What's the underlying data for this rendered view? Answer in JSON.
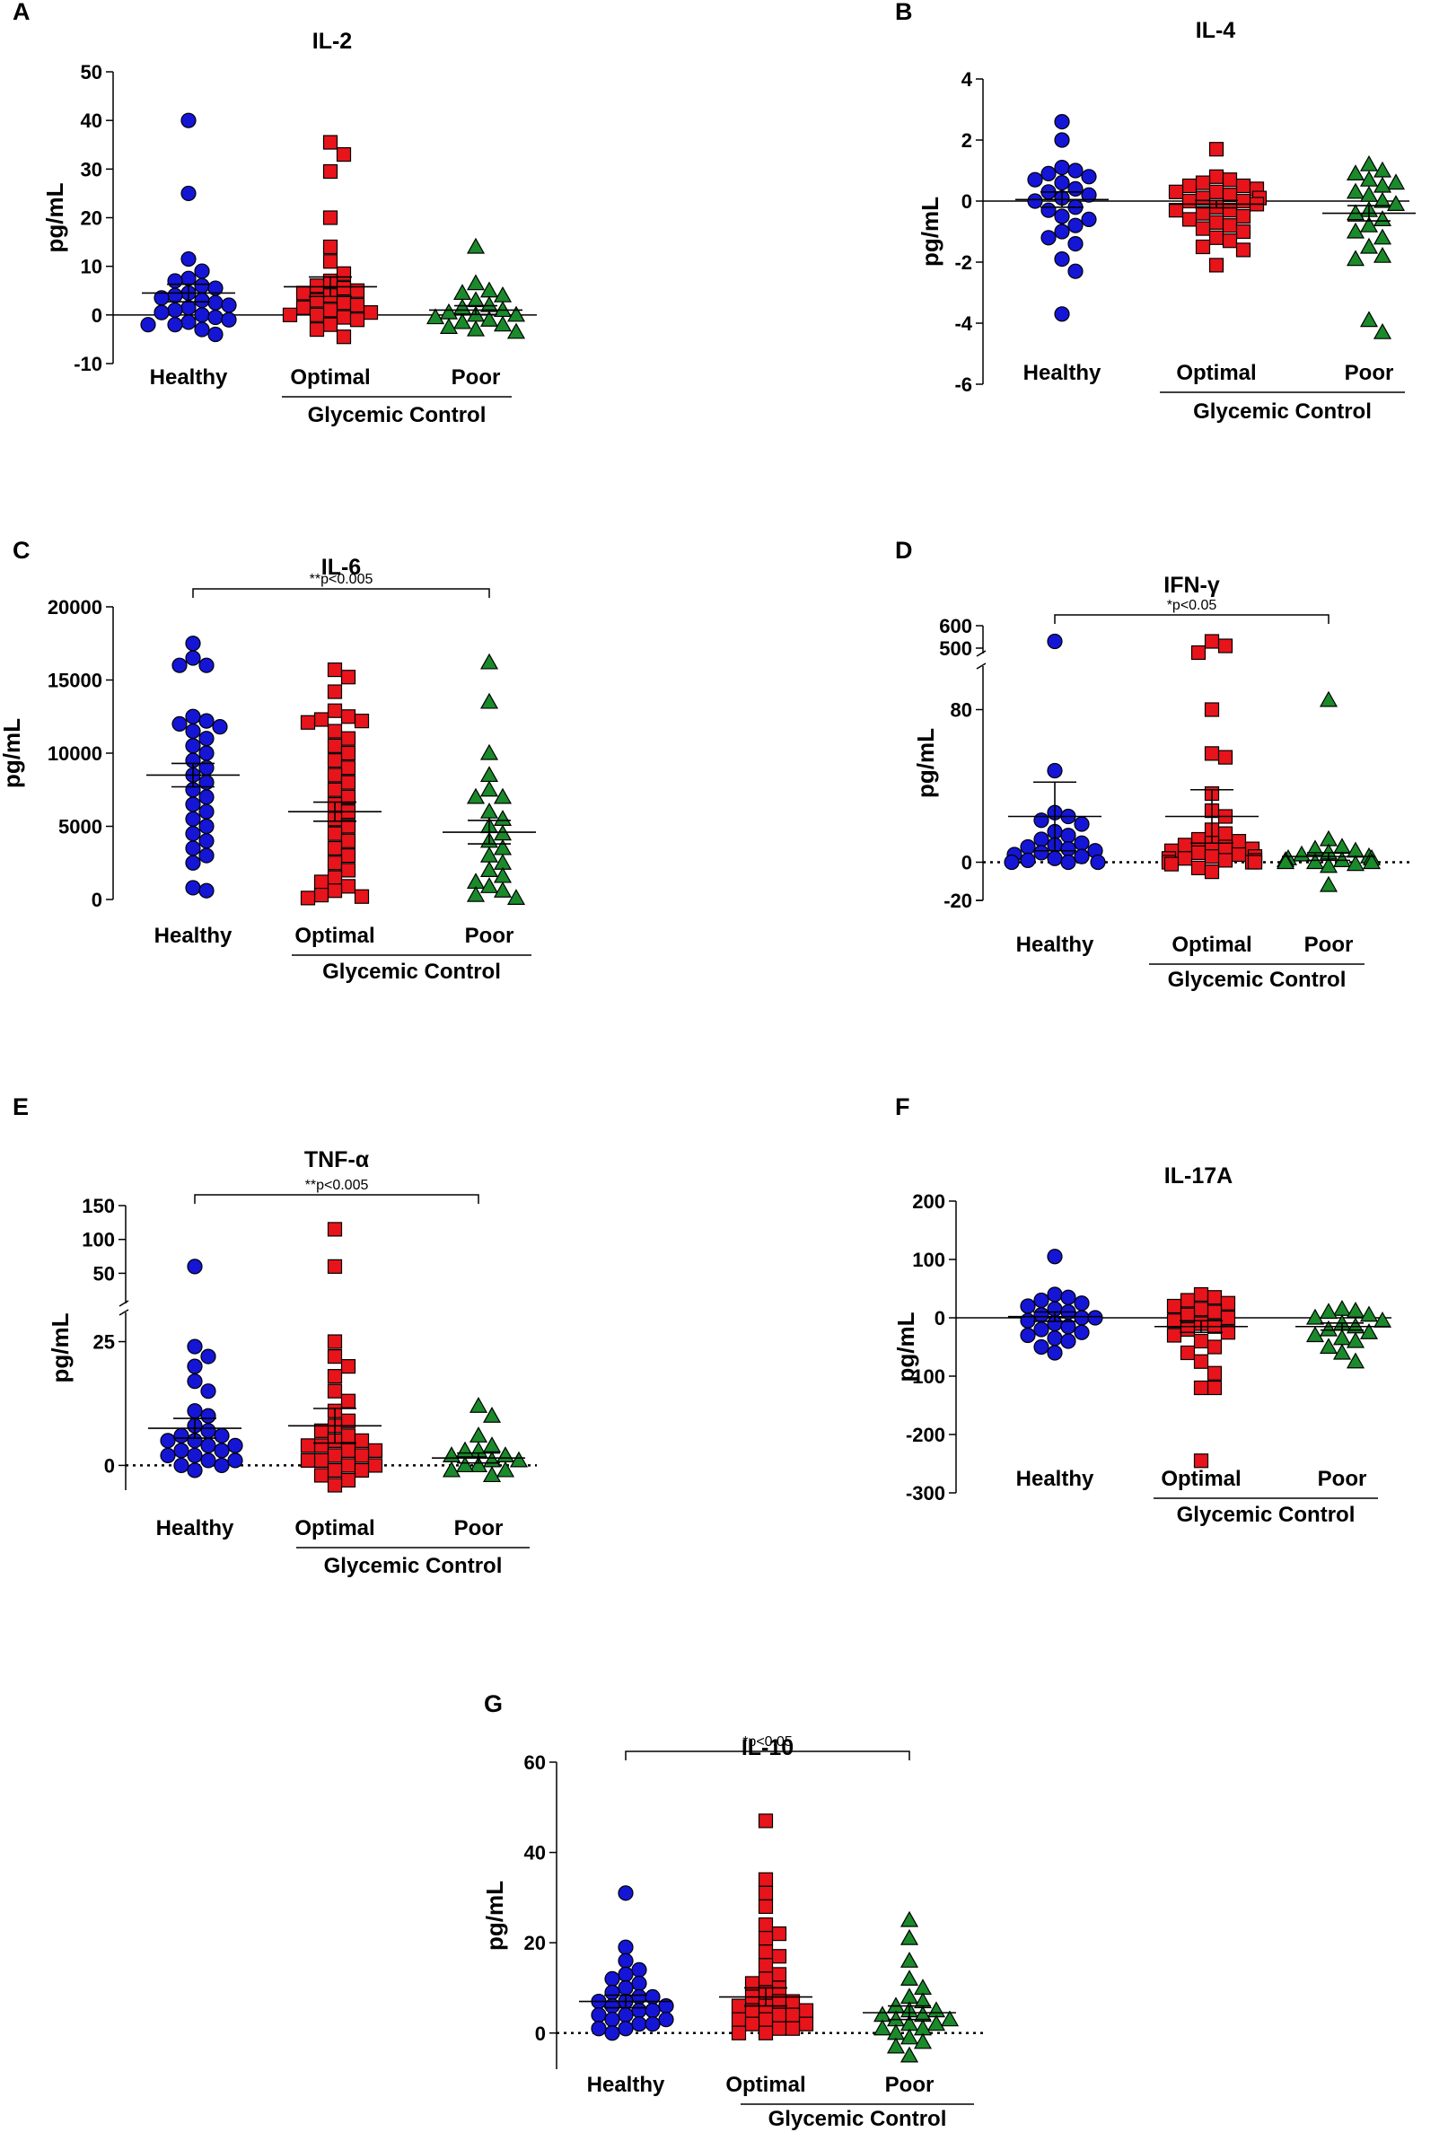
{
  "figure": {
    "group_label": "Glycemic Control",
    "categories": [
      "Healthy",
      "Optimal",
      "Poor"
    ],
    "colors": {
      "Healthy": "#1515d6",
      "Optimal": "#e8141b",
      "Poor": "#1a8a2a"
    },
    "markers": {
      "Healthy": "circle",
      "Optimal": "square",
      "Poor": "triangle"
    }
  },
  "chart_data": [
    {
      "panel": "A",
      "type": "scatter",
      "title": "IL-2",
      "ylabel": "pg/mL",
      "ylim": [
        -10,
        50
      ],
      "yticks": [
        -10,
        0,
        10,
        20,
        30,
        40,
        50
      ],
      "zero_line": "solid",
      "categories": [
        "Healthy",
        "Optimal",
        "Poor"
      ],
      "series": [
        {
          "name": "Healthy",
          "mean": 4.5,
          "sem": 1.8,
          "values": [
            40,
            25,
            11.5,
            9,
            7.5,
            7,
            6,
            5.5,
            4.5,
            4,
            3.5,
            3,
            2.5,
            2,
            1.5,
            1,
            0.5,
            0,
            -0.5,
            -1,
            -1.5,
            -2,
            -2,
            -3,
            -4
          ]
        },
        {
          "name": "Optimal",
          "mean": 5.8,
          "sem": 2.0,
          "values": [
            35.5,
            33,
            29.5,
            20,
            14,
            11,
            8.5,
            7,
            6,
            5.5,
            5,
            4.5,
            4,
            3,
            2.5,
            2,
            1.5,
            1,
            0.5,
            0,
            0,
            -0.5,
            -1,
            -2,
            -3,
            -4.5
          ]
        },
        {
          "name": "Poor",
          "mean": 1.0,
          "sem": 0.9,
          "values": [
            14,
            6.5,
            5,
            4.5,
            4,
            3,
            2,
            1.5,
            1,
            0.5,
            0,
            0,
            -0.5,
            -1,
            -1.5,
            -2,
            -2.5,
            -3,
            -3.5
          ]
        }
      ]
    },
    {
      "panel": "B",
      "type": "scatter",
      "title": "IL-4",
      "ylabel": "pg/mL",
      "ylim": [
        -6,
        4
      ],
      "yticks": [
        -6,
        -4,
        -2,
        0,
        2,
        4
      ],
      "zero_line": "solid",
      "categories": [
        "Healthy",
        "Optimal",
        "Poor"
      ],
      "series": [
        {
          "name": "Healthy",
          "mean": 0.05,
          "sem": 0.25,
          "values": [
            2.6,
            2.0,
            1.1,
            1.0,
            0.9,
            0.8,
            0.7,
            0.6,
            0.4,
            0.3,
            0.2,
            0.1,
            0,
            -0.2,
            -0.3,
            -0.5,
            -0.6,
            -0.8,
            -1.0,
            -1.2,
            -1.4,
            -1.9,
            -2.3,
            -3.7
          ]
        },
        {
          "name": "Optimal",
          "mean": -0.1,
          "sem": 0.12,
          "values": [
            1.7,
            0.8,
            0.7,
            0.6,
            0.5,
            0.5,
            0.4,
            0.3,
            0.3,
            0.2,
            0.1,
            0.1,
            0,
            0,
            -0.1,
            -0.2,
            -0.3,
            -0.3,
            -0.4,
            -0.5,
            -0.6,
            -0.7,
            -0.8,
            -0.9,
            -1.0,
            -1.2,
            -1.3,
            -1.5,
            -1.6,
            -2.1
          ]
        },
        {
          "name": "Poor",
          "mean": -0.4,
          "sem": 0.25,
          "values": [
            1.2,
            1.0,
            0.9,
            0.7,
            0.6,
            0.5,
            0.3,
            0.2,
            0,
            -0.1,
            -0.3,
            -0.4,
            -0.6,
            -0.8,
            -1.0,
            -1.2,
            -1.5,
            -1.8,
            -1.9,
            -3.9,
            -4.3
          ]
        }
      ]
    },
    {
      "panel": "C",
      "type": "scatter",
      "title": "IL-6",
      "ylabel": "pg/mL",
      "ylim": [
        0,
        20000
      ],
      "yticks": [
        0,
        5000,
        10000,
        15000,
        20000
      ],
      "zero_line": "none",
      "annotation": {
        "text": "**p<0.005",
        "from": "Healthy",
        "to": "Poor"
      },
      "categories": [
        "Healthy",
        "Optimal",
        "Poor"
      ],
      "series": [
        {
          "name": "Healthy",
          "mean": 8500,
          "sem": 800,
          "values": [
            17500,
            16500,
            16000,
            16000,
            12500,
            12200,
            12000,
            11800,
            11500,
            11000,
            10500,
            10000,
            9500,
            9000,
            8500,
            8000,
            7500,
            7000,
            6500,
            6000,
            5500,
            5000,
            4500,
            4000,
            3500,
            3000,
            2500,
            800,
            600
          ]
        },
        {
          "name": "Optimal",
          "mean": 6000,
          "sem": 650,
          "values": [
            15700,
            15200,
            14200,
            12900,
            12500,
            12300,
            12200,
            12100,
            11500,
            11000,
            10500,
            10000,
            9500,
            9000,
            8500,
            8000,
            7500,
            7000,
            6500,
            6000,
            5500,
            5000,
            4500,
            4000,
            3500,
            3000,
            2500,
            2000,
            1500,
            1200,
            900,
            600,
            300,
            200,
            100
          ]
        },
        {
          "name": "Poor",
          "mean": 4600,
          "sem": 800,
          "values": [
            16200,
            13500,
            10000,
            8500,
            7500,
            7000,
            7000,
            6000,
            5500,
            5000,
            4500,
            4000,
            3500,
            3000,
            2500,
            2000,
            1600,
            1200,
            900,
            600,
            300,
            100
          ]
        }
      ]
    },
    {
      "panel": "D",
      "type": "scatter",
      "title": "IFN-γ",
      "ylabel": "pg/mL",
      "broken_axis": true,
      "ylim_lower": [
        -20,
        100
      ],
      "ylim_upper": [
        500,
        600
      ],
      "yticks_lower": [
        -20,
        0,
        80
      ],
      "yticks_upper": [
        500,
        600
      ],
      "zero_line": "dotted",
      "annotation": {
        "text": "*p<0.05",
        "from": "Healthy",
        "to": "Poor"
      },
      "categories": [
        "Healthy",
        "Optimal",
        "Poor"
      ],
      "series": [
        {
          "name": "Healthy",
          "mean": 24,
          "sem": 18,
          "values": [
            530,
            48,
            26,
            24,
            22,
            20,
            16,
            14,
            12,
            10,
            9,
            8,
            7,
            6,
            5,
            4,
            3,
            2,
            1,
            0,
            0,
            0
          ]
        },
        {
          "name": "Optimal",
          "mean": 24,
          "sem": 14,
          "values": [
            530,
            510,
            480,
            80,
            57,
            55,
            36,
            27,
            24,
            17,
            15,
            12,
            11,
            10,
            9,
            8,
            7,
            6,
            5,
            4,
            3,
            3,
            2,
            2,
            1,
            1,
            0,
            0,
            0,
            -1,
            -3,
            -5
          ]
        },
        {
          "name": "Poor",
          "mean": 3,
          "sem": 2,
          "values": [
            85,
            12,
            8,
            7,
            6,
            5,
            4,
            3,
            2,
            2,
            1,
            1,
            0,
            0,
            0,
            -1,
            -2,
            -12
          ]
        }
      ]
    },
    {
      "panel": "E",
      "type": "scatter",
      "title": "TNF-α",
      "ylabel": "pg/mL",
      "broken_axis": true,
      "ylim_lower": [
        -5,
        28
      ],
      "ylim_upper": [
        28,
        150
      ],
      "yticks_lower": [
        0,
        25
      ],
      "yticks_upper": [
        50,
        100,
        150
      ],
      "zero_line": "dotted",
      "annotation": {
        "text": "**p<0.005",
        "from": "Healthy",
        "to": "Poor"
      },
      "categories": [
        "Healthy",
        "Optimal",
        "Poor"
      ],
      "series": [
        {
          "name": "Healthy",
          "mean": 7.5,
          "sem": 2.0,
          "values": [
            60,
            24,
            22,
            20,
            17,
            15,
            11,
            10,
            8,
            7,
            6,
            6,
            5,
            5,
            4,
            4,
            3,
            3,
            2,
            2,
            1,
            1,
            0,
            0,
            -1
          ]
        },
        {
          "name": "Optimal",
          "mean": 8,
          "sem": 3.5,
          "values": [
            115,
            60,
            25,
            22,
            20,
            18,
            15,
            13,
            11,
            9,
            8,
            7,
            6,
            5,
            5,
            4,
            4,
            3,
            3,
            2,
            2,
            1,
            1,
            0,
            0,
            -1,
            -1,
            -2,
            -3,
            -4
          ]
        },
        {
          "name": "Poor",
          "mean": 1.5,
          "sem": 1.0,
          "values": [
            12,
            10,
            6,
            4,
            3,
            3,
            2,
            2,
            1,
            1,
            0,
            0,
            -1,
            -1,
            -2
          ]
        }
      ]
    },
    {
      "panel": "F",
      "type": "scatter",
      "title": "IL-17A",
      "ylabel": "pg/mL",
      "ylim": [
        -300,
        200
      ],
      "yticks": [
        -300,
        -200,
        -100,
        0,
        100,
        200
      ],
      "zero_line": "solid",
      "categories": [
        "Healthy",
        "Optimal",
        "Poor"
      ],
      "series": [
        {
          "name": "Healthy",
          "mean": 2,
          "sem": 8,
          "values": [
            105,
            40,
            35,
            30,
            25,
            20,
            15,
            10,
            5,
            0,
            0,
            -5,
            -10,
            -15,
            -20,
            -25,
            -30,
            -35,
            -40,
            -50,
            -60
          ]
        },
        {
          "name": "Optimal",
          "mean": -15,
          "sem": 10,
          "values": [
            40,
            35,
            30,
            25,
            20,
            15,
            10,
            5,
            0,
            -5,
            -10,
            -15,
            -20,
            -25,
            -30,
            -40,
            -50,
            -60,
            -75,
            -95,
            -120,
            -120,
            -245
          ]
        },
        {
          "name": "Poor",
          "mean": -15,
          "sem": 6,
          "values": [
            15,
            12,
            10,
            5,
            0,
            -5,
            -10,
            -15,
            -20,
            -25,
            -30,
            -35,
            -40,
            -50,
            -60,
            -75
          ]
        }
      ]
    },
    {
      "panel": "G",
      "type": "scatter",
      "title": "IL-10",
      "ylabel": "pg/mL",
      "ylim": [
        -8,
        60
      ],
      "yticks": [
        0,
        20,
        40,
        60
      ],
      "zero_line": "dotted",
      "annotation": {
        "text": "*p<0.05",
        "from": "Healthy",
        "to": "Poor"
      },
      "categories": [
        "Healthy",
        "Optimal",
        "Poor"
      ],
      "series": [
        {
          "name": "Healthy",
          "mean": 7,
          "sem": 1.4,
          "values": [
            31,
            19,
            16,
            14,
            13,
            12,
            11,
            10,
            9,
            8,
            8,
            7,
            7,
            6,
            6,
            5,
            5,
            4,
            4,
            3,
            3,
            2,
            2,
            1,
            1,
            0
          ]
        },
        {
          "name": "Optimal",
          "mean": 8,
          "sem": 2,
          "values": [
            47,
            34,
            31,
            28,
            24,
            22,
            21,
            18,
            17,
            15,
            13,
            12,
            11,
            10,
            9,
            8,
            7,
            7,
            6,
            6,
            5,
            5,
            4,
            4,
            3,
            3,
            2,
            2,
            1,
            1,
            0,
            0
          ]
        },
        {
          "name": "Poor",
          "mean": 4.5,
          "sem": 1.5,
          "values": [
            25,
            21,
            16,
            12,
            10,
            8,
            7,
            6,
            5,
            5,
            4,
            4,
            3,
            3,
            2,
            2,
            1,
            1,
            0,
            -1,
            -2,
            -3,
            -5
          ]
        }
      ]
    }
  ]
}
